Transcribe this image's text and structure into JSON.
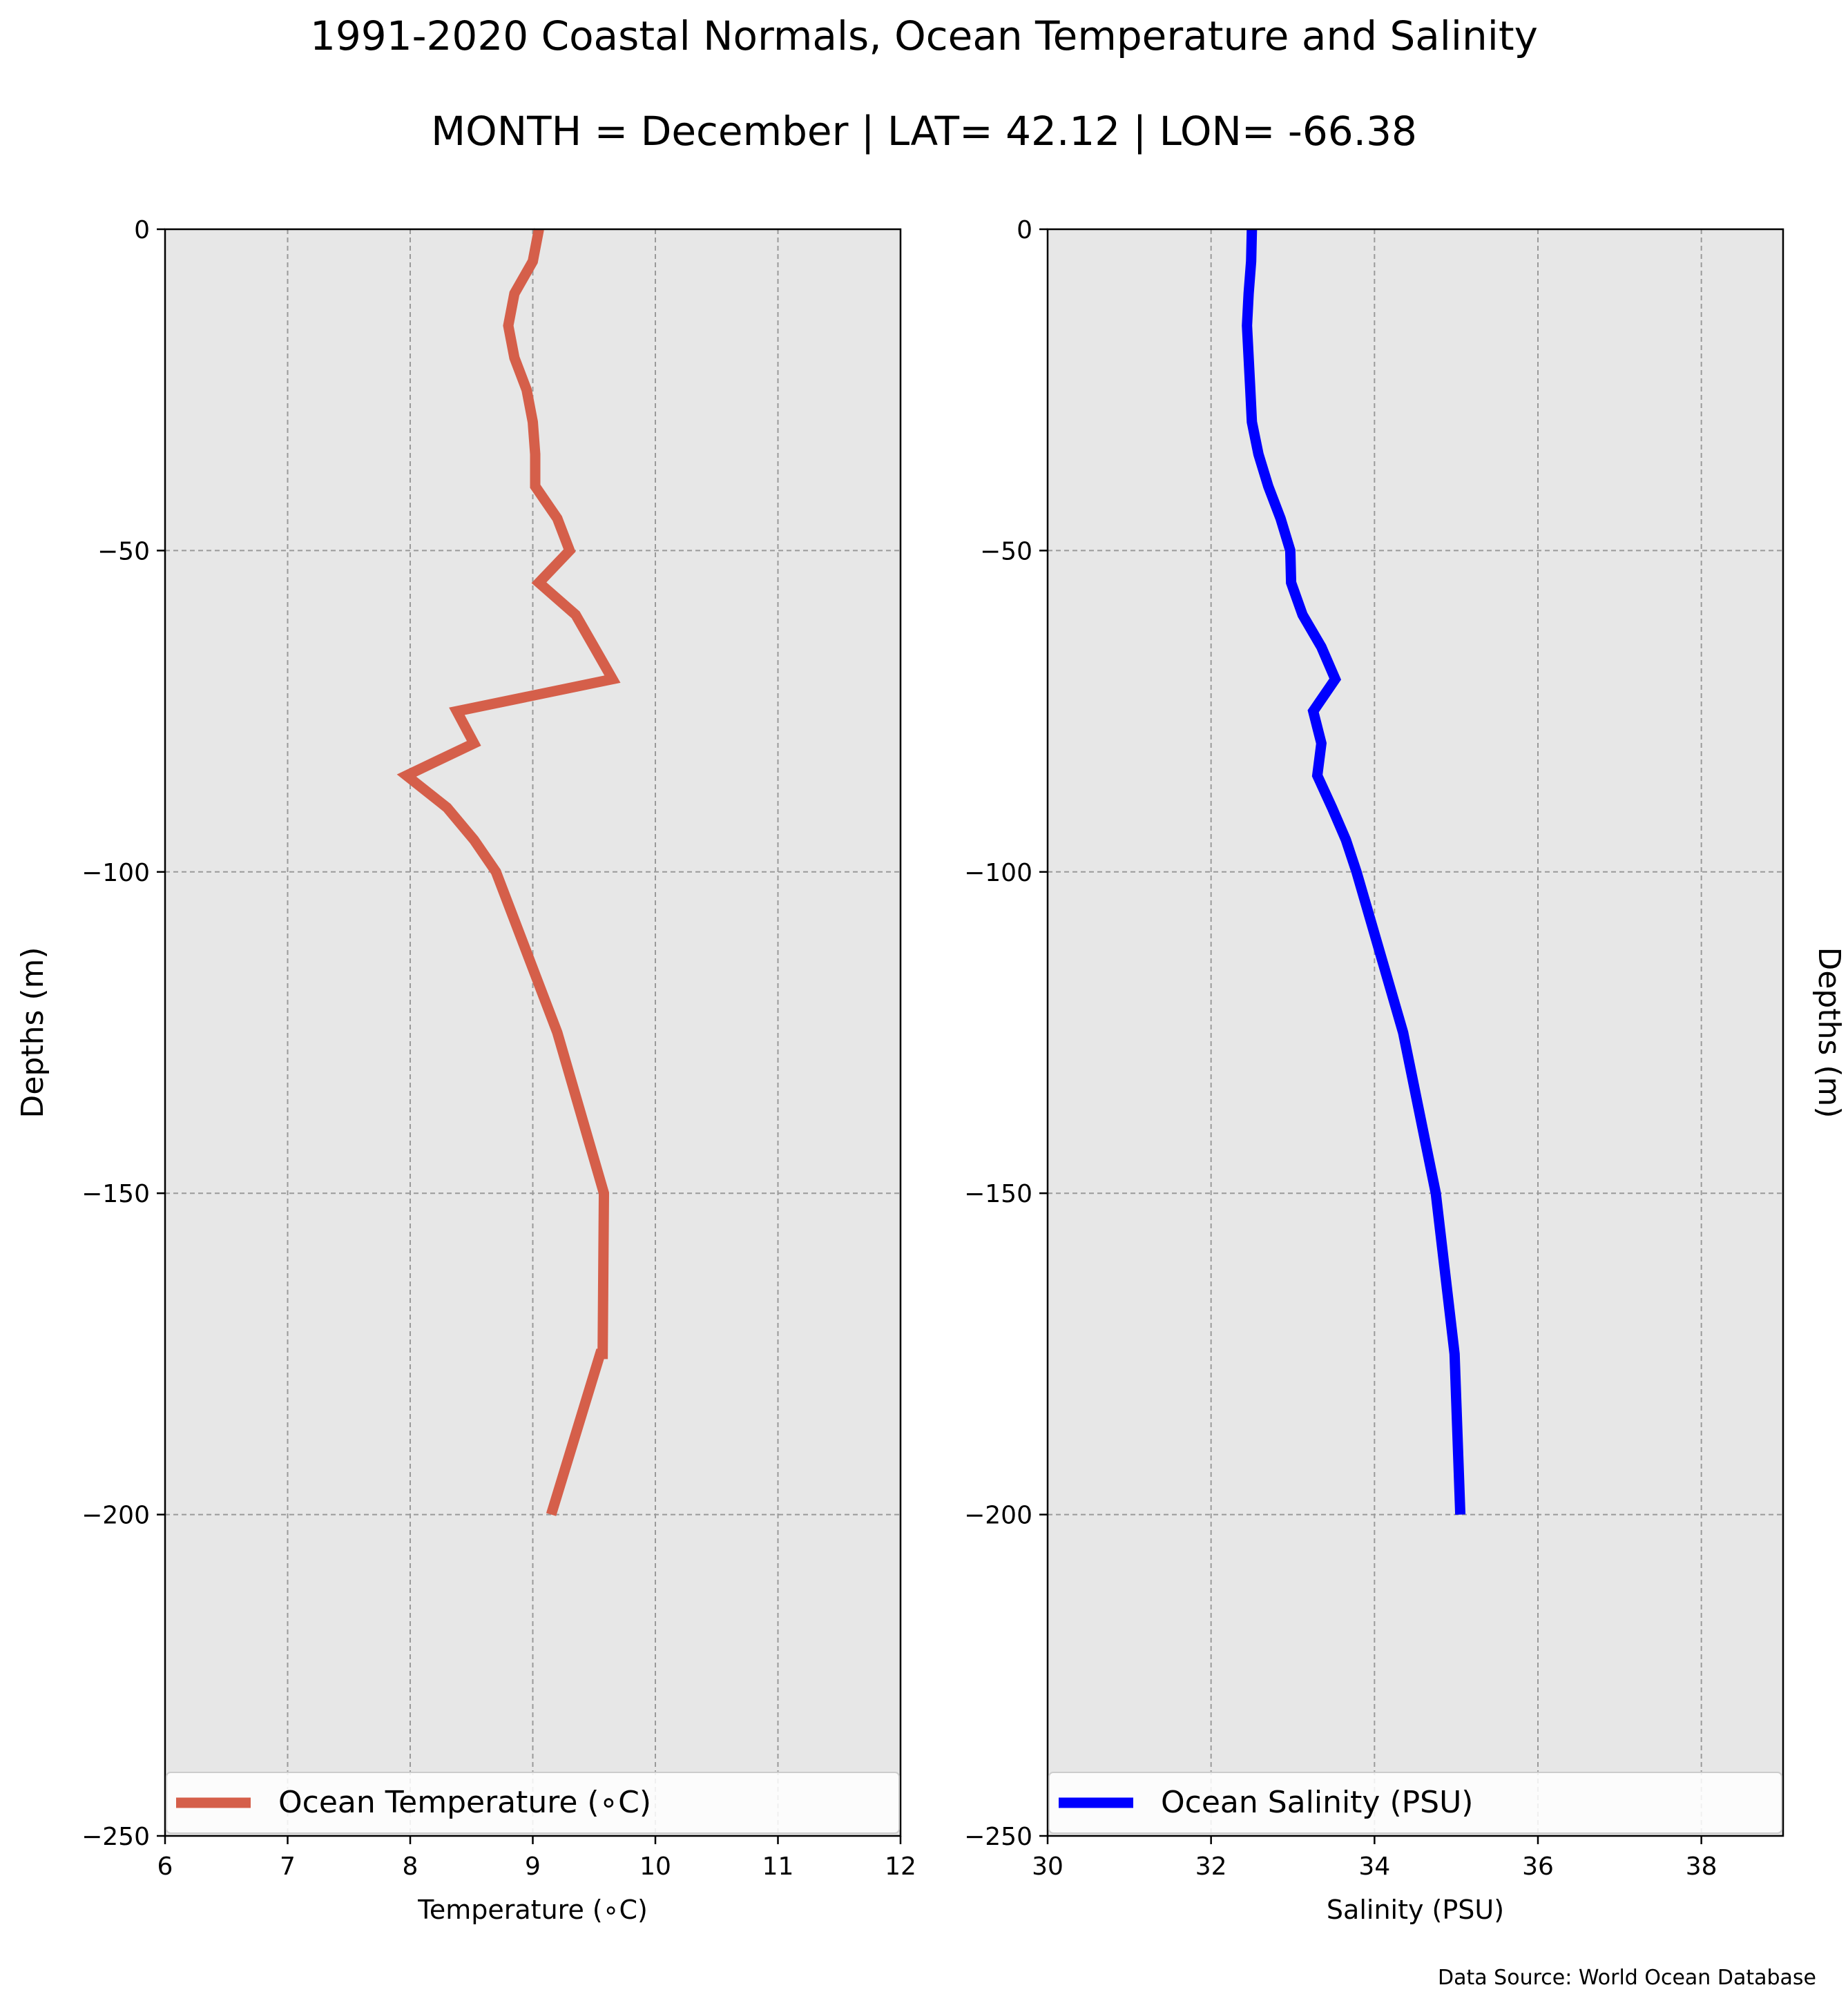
{
  "title": "1991-2020 Coastal Normals, Ocean Temperature and Salinity",
  "subtitle": "MONTH = December | LAT= 42.12 | LON= -66.38",
  "footer": "Data Source: World Ocean Database",
  "chart_data": [
    {
      "type": "line",
      "xlabel": "Temperature ($^\\circ$C)",
      "xlabel_display": "Temperature (∘C)",
      "ylabel": "Depths (m)",
      "xlim": [
        6,
        12
      ],
      "ylim": [
        -250,
        0
      ],
      "xticks": [
        6,
        7,
        8,
        9,
        10,
        11,
        12
      ],
      "yticks": [
        0,
        -50,
        -100,
        -150,
        -200,
        -250
      ],
      "grid": true,
      "legend_position": "bottom",
      "series": [
        {
          "name": "Ocean Temperature (∘C)",
          "color": "#d55f4a",
          "x": [
            9.05,
            9.0,
            8.85,
            8.8,
            8.85,
            8.95,
            9.0,
            9.02,
            9.02,
            9.2,
            9.3,
            9.05,
            9.35,
            9.5,
            9.65,
            8.38,
            8.52,
            7.97,
            8.3,
            8.52,
            8.7,
            9.2,
            9.58,
            9.57,
            9.55,
            9.15
          ],
          "y": [
            0,
            -5,
            -10,
            -15,
            -20,
            -25,
            -30,
            -35,
            -40,
            -45,
            -50,
            -55,
            -60,
            -65,
            -70,
            -75,
            -80,
            -85,
            -90,
            -95,
            -100,
            -125,
            -150,
            -175,
            -175,
            -200
          ]
        }
      ]
    },
    {
      "type": "line",
      "xlabel": "Salinity (PSU)",
      "ylabel": "Depths (m)",
      "xlim": [
        30,
        39
      ],
      "ylim": [
        -250,
        0
      ],
      "xticks": [
        30,
        32,
        34,
        36,
        38
      ],
      "yticks": [
        0,
        -50,
        -100,
        -150,
        -200,
        -250
      ],
      "grid": true,
      "legend_position": "bottom",
      "series": [
        {
          "name": "Ocean Salinity (PSU)",
          "color": "#0000ff",
          "x": [
            32.5,
            32.49,
            32.46,
            32.44,
            32.46,
            32.48,
            32.5,
            32.58,
            32.7,
            32.85,
            32.97,
            32.98,
            33.12,
            33.35,
            33.52,
            33.25,
            33.35,
            33.3,
            33.48,
            33.65,
            33.78,
            34.35,
            34.75,
            34.98,
            35.05
          ],
          "y": [
            0,
            -5,
            -10,
            -15,
            -20,
            -25,
            -30,
            -35,
            -40,
            -45,
            -50,
            -55,
            -60,
            -65,
            -70,
            -75,
            -80,
            -85,
            -90,
            -95,
            -100,
            -125,
            -150,
            -175,
            -200
          ]
        }
      ]
    }
  ]
}
